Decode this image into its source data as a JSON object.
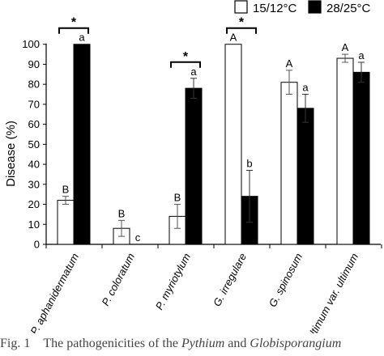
{
  "chart_data": {
    "type": "bar",
    "ylabel": "Disease (%)",
    "ylim": [
      0,
      110
    ],
    "yticks": [
      0,
      10,
      20,
      30,
      40,
      50,
      60,
      70,
      80,
      90,
      100
    ],
    "grid": false,
    "legend_position": "top-right",
    "categories": [
      "P. aphanidermatum",
      "P. coloratum",
      "P. myriotylum",
      "G. irregulare",
      "G. spinosum",
      "G. ultimum var. ultimum"
    ],
    "series": [
      {
        "name": "15/12°C",
        "color": "#ffffff",
        "values": [
          22,
          8,
          14,
          100,
          81,
          93
        ],
        "errors": [
          2,
          4,
          6,
          0,
          6,
          2
        ],
        "letters": [
          "B",
          "B",
          "B",
          "A",
          "A",
          "A"
        ]
      },
      {
        "name": "28/25°C",
        "color": "#000000",
        "values": [
          100,
          0,
          78,
          24,
          68,
          86
        ],
        "errors": [
          0,
          0,
          5,
          13,
          7,
          5
        ],
        "letters": [
          "a",
          "c",
          "a",
          "b",
          "a",
          "a"
        ]
      }
    ],
    "significance": [
      {
        "category_index": 0,
        "label": "*"
      },
      {
        "category_index": 2,
        "label": "*"
      },
      {
        "category_index": 3,
        "label": "*"
      }
    ]
  },
  "caption": {
    "prefix": "Fig. 1",
    "text": "The pathogenicities of the ",
    "genus1": "Pythium",
    "and": " and ",
    "genus2": "Globisporangium"
  }
}
